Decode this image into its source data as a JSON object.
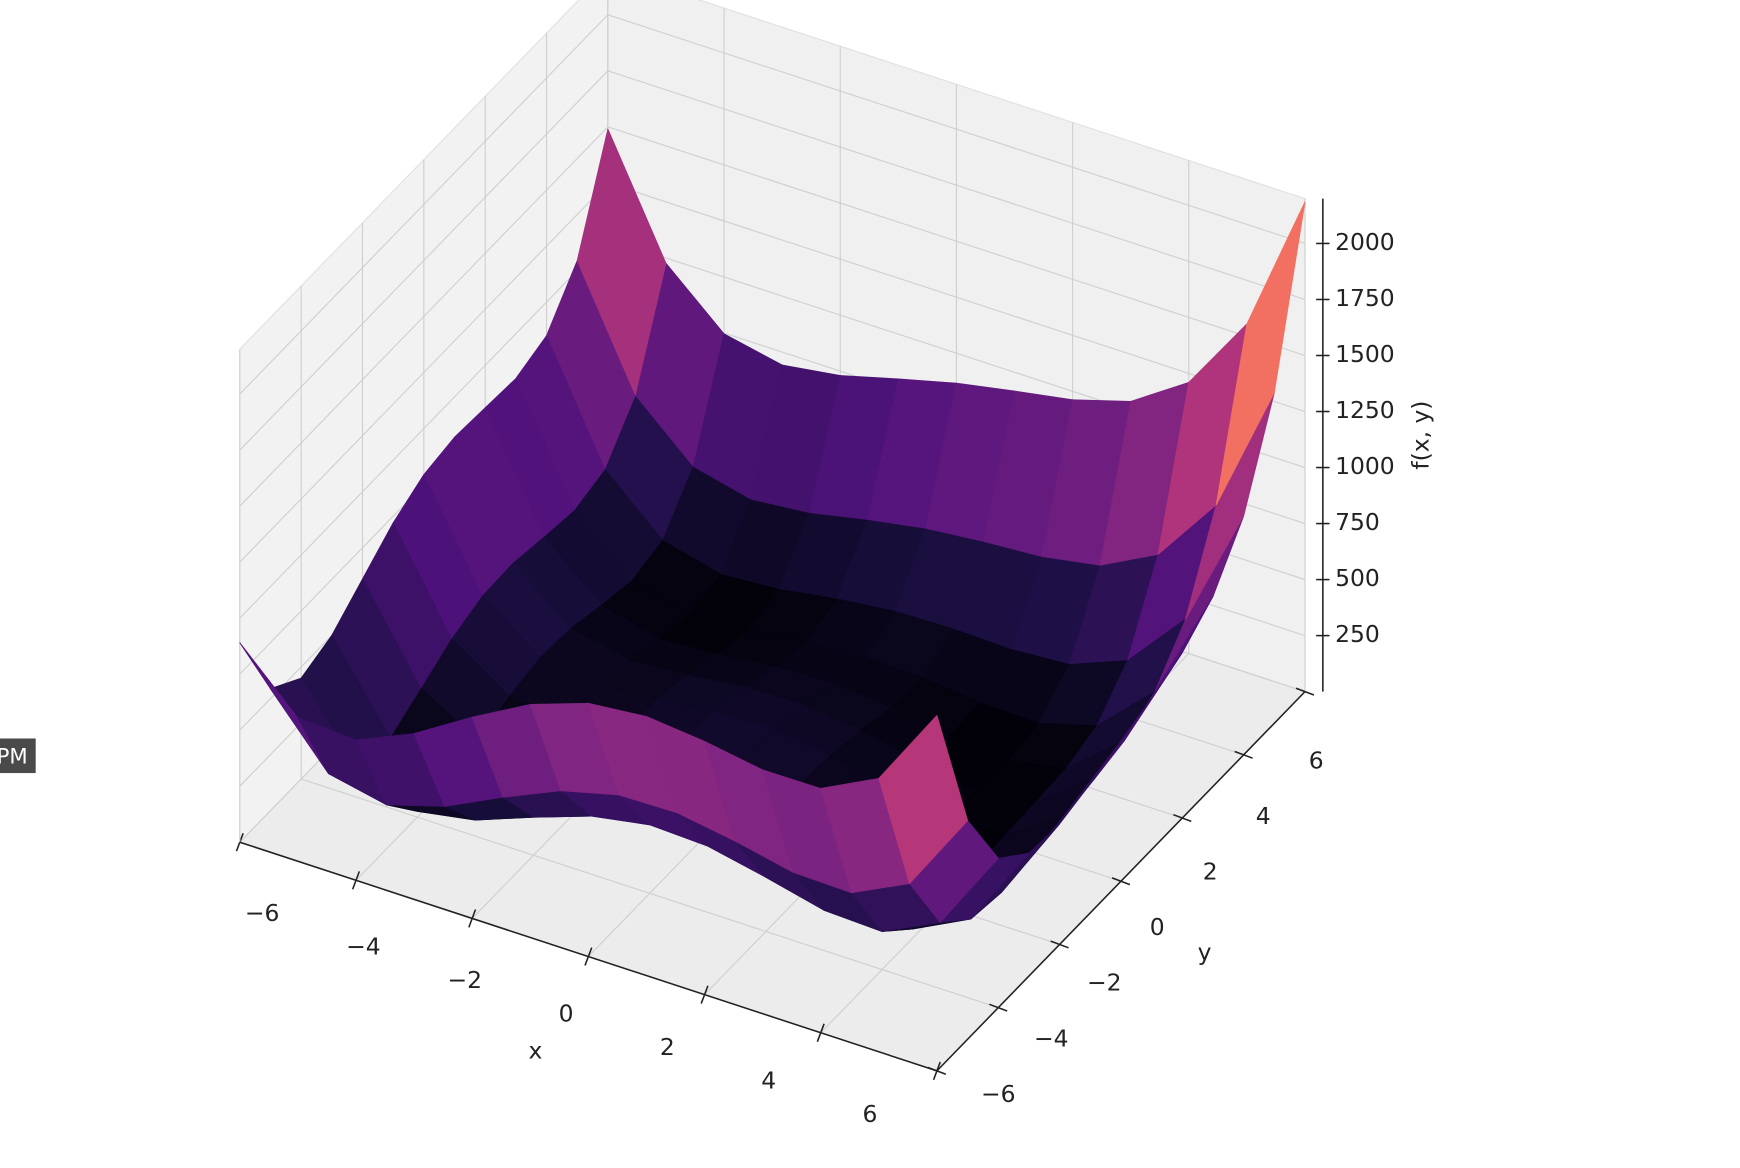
{
  "tooltip": "PM",
  "chart_data": {
    "type": "surface",
    "xlabel": "x",
    "ylabel": "y",
    "zlabel": "f(x, y)",
    "colormap": "magma",
    "grid": true,
    "x": [
      -6,
      -5,
      -4,
      -3,
      -2,
      -1,
      0,
      1,
      2,
      3,
      4,
      5,
      6
    ],
    "y": [
      -6,
      -5,
      -4,
      -3,
      -2,
      -1,
      0,
      1,
      2,
      3,
      4,
      5,
      6
    ],
    "z": [
      [
        890,
        640,
        626,
        740,
        898,
        1040,
        1130,
        1156,
        1130,
        1088,
        1090,
        1220,
        1586
      ],
      [
        544,
        250,
        196,
        274,
        400,
        514,
        580,
        586,
        544,
        490,
        484,
        610,
        976
      ],
      [
        450,
        116,
        26,
        72,
        170,
        260,
        306,
        296,
        242,
        180,
        170,
        296,
        666
      ],
      [
        500,
        130,
        8,
        26,
        100,
        170,
        200,
        178,
        116,
        50,
        40,
        170,
        548
      ],
      [
        610,
        208,
        58,
        52,
        106,
        160,
        178,
        148,
        82,
        16,
        10,
        148,
        538
      ],
      [
        720,
        290,
        116,
        90,
        128,
        170,
        180,
        146,
        80,
        18,
        20,
        170,
        576
      ],
      [
        794,
        340,
        146,
        104,
        130,
        164,
        170,
        136,
        74,
        20,
        34,
        200,
        626
      ],
      [
        820,
        346,
        136,
        82,
        100,
        130,
        136,
        106,
        52,
        10,
        40,
        226,
        676
      ],
      [
        810,
        320,
        98,
        36,
        50,
        80,
        90,
        68,
        26,
        0,
        50,
        260,
        738
      ],
      [
        800,
        298,
        68,
        2,
        16,
        50,
        68,
        58,
        32,
        26,
        100,
        338,
        848
      ],
      [
        850,
        340,
        106,
        40,
        58,
        100,
        130,
        136,
        130,
        148,
        250,
        520,
        1066
      ],
      [
        1044,
        530,
        296,
        234,
        260,
        314,
        360,
        386,
        404,
        450,
        584,
        890,
        1476
      ],
      [
        1490,
        976,
        746,
        692,
        730,
        800,
        866,
        916,
        962,
        1040,
        1210,
        1556,
        2186
      ]
    ],
    "xlim": [
      -6,
      6
    ],
    "ylim": [
      -6,
      6
    ],
    "zlim": [
      0,
      2200
    ],
    "xticks": [
      {
        "value": -6,
        "label": "−6"
      },
      {
        "value": -4,
        "label": "−4"
      },
      {
        "value": -2,
        "label": "−2"
      },
      0,
      2,
      4,
      6
    ],
    "yticks": [
      {
        "value": -6,
        "label": "−6"
      },
      {
        "value": -4,
        "label": "−4"
      },
      {
        "value": -2,
        "label": "−2"
      },
      0,
      2,
      4,
      6
    ],
    "zticks": [
      250,
      500,
      750,
      1000,
      1250,
      1500,
      1750,
      2000
    ]
  }
}
